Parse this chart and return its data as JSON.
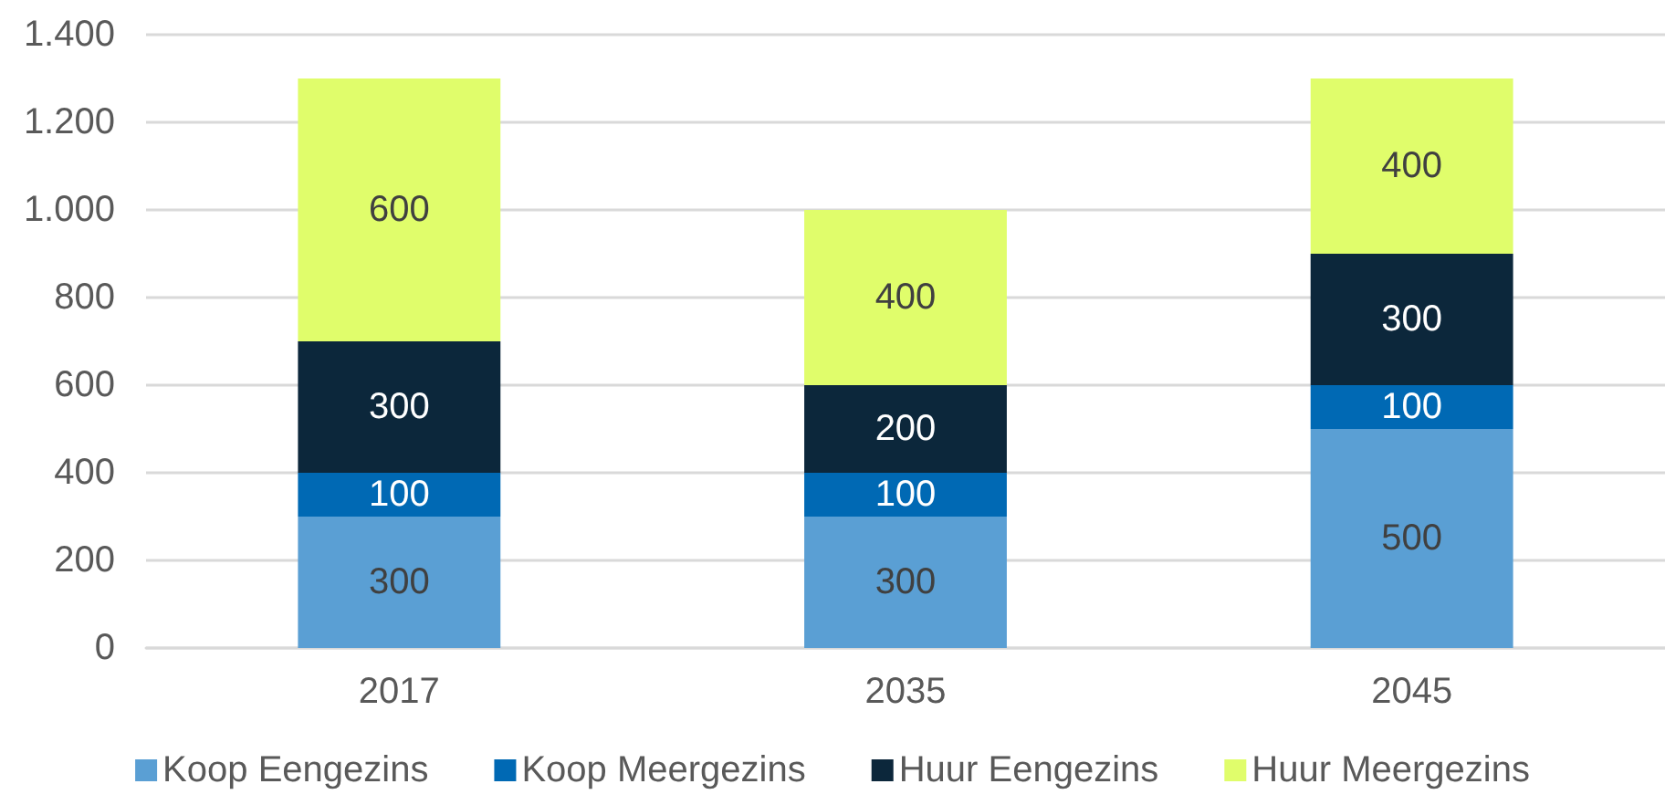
{
  "chart_data": {
    "type": "bar",
    "stacked": true,
    "categories": [
      "2017",
      "2035",
      "2045"
    ],
    "series": [
      {
        "name": "Koop Eengezins",
        "color": "#5a9fd4",
        "values": [
          300,
          300,
          500
        ]
      },
      {
        "name": "Koop Meergezins",
        "color": "#0069b4",
        "values": [
          100,
          100,
          100
        ]
      },
      {
        "name": "Huur Eengezins",
        "color": "#0c273b",
        "values": [
          300,
          200,
          300
        ]
      },
      {
        "name": "Huur Meergezins",
        "color": "#e0fd6b",
        "values": [
          600,
          400,
          400
        ]
      }
    ],
    "ylim": [
      0,
      1400
    ],
    "yticks": [
      0,
      200,
      400,
      600,
      800,
      {
        "value": 1000,
        "label": "1.000"
      },
      {
        "value": 1200,
        "label": "1.200"
      },
      {
        "value": 1400,
        "label": "1.400"
      }
    ],
    "grid": "y",
    "legend": "bottom",
    "data_labels": true
  }
}
